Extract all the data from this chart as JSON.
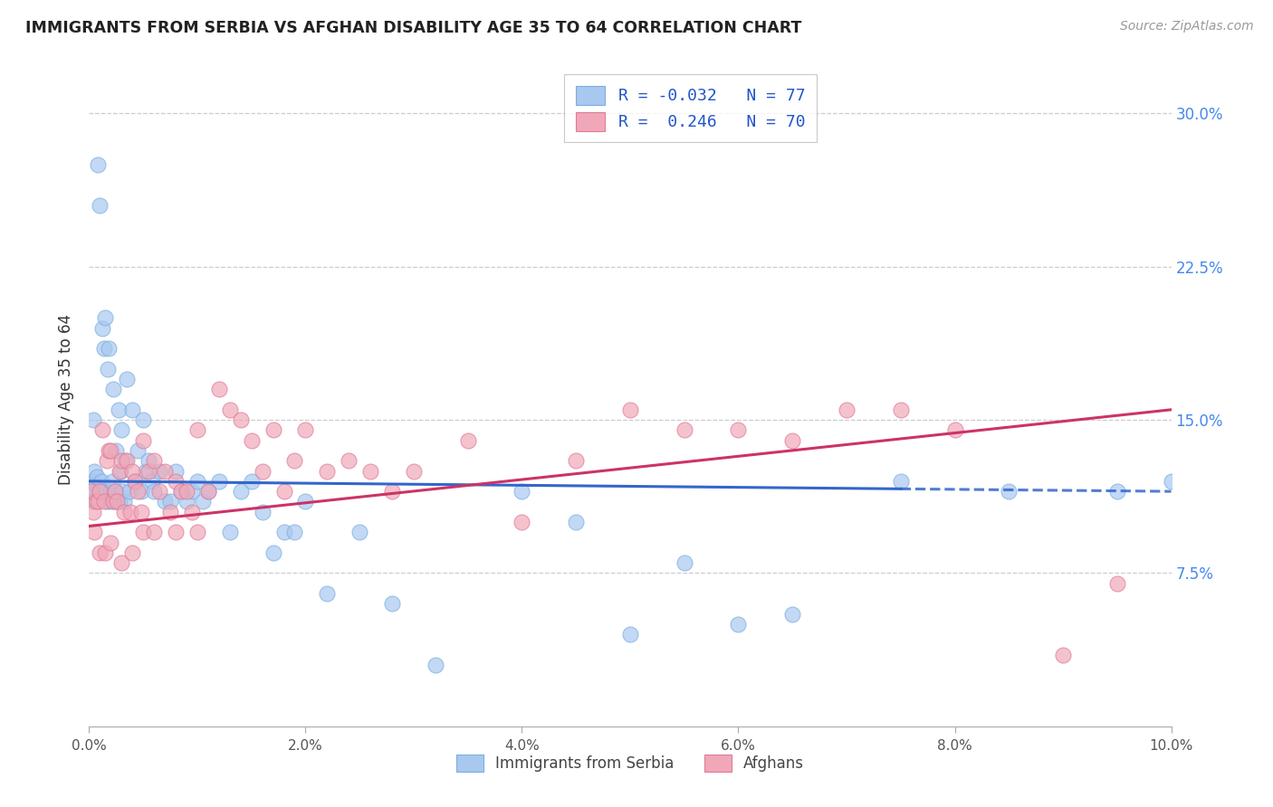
{
  "title": "IMMIGRANTS FROM SERBIA VS AFGHAN DISABILITY AGE 35 TO 64 CORRELATION CHART",
  "source": "Source: ZipAtlas.com",
  "ylabel": "Disability Age 35 to 64",
  "x_tick_labels": [
    "0.0%",
    "2.0%",
    "4.0%",
    "6.0%",
    "8.0%",
    "10.0%"
  ],
  "x_tick_values": [
    0.0,
    2.0,
    4.0,
    6.0,
    8.0,
    10.0
  ],
  "y_tick_labels": [
    "7.5%",
    "15.0%",
    "22.5%",
    "30.0%"
  ],
  "y_tick_values": [
    7.5,
    15.0,
    22.5,
    30.0
  ],
  "xlim": [
    0.0,
    10.0
  ],
  "ylim": [
    0.0,
    32.0
  ],
  "serbia_R": "-0.032",
  "serbia_N": "77",
  "afghan_R": "0.246",
  "afghan_N": "70",
  "serbia_color": "#a8c8f0",
  "afghan_color": "#f0a8b8",
  "serbia_line_color": "#3366cc",
  "afghan_line_color": "#cc3366",
  "legend_label_serbia": "Immigrants from Serbia",
  "legend_label_afghan": "Afghans",
  "serbia_trend_x0": 0.0,
  "serbia_trend_y0": 12.0,
  "serbia_trend_x1": 10.0,
  "serbia_trend_y1": 11.5,
  "serbia_solid_end_x": 7.5,
  "afghan_trend_x0": 0.0,
  "afghan_trend_y0": 9.8,
  "afghan_trend_x1": 10.0,
  "afghan_trend_y1": 15.5,
  "serbia_x": [
    0.02,
    0.03,
    0.04,
    0.05,
    0.06,
    0.07,
    0.08,
    0.09,
    0.1,
    0.11,
    0.12,
    0.13,
    0.14,
    0.15,
    0.16,
    0.17,
    0.18,
    0.19,
    0.2,
    0.21,
    0.22,
    0.23,
    0.24,
    0.25,
    0.26,
    0.27,
    0.28,
    0.29,
    0.3,
    0.31,
    0.32,
    0.33,
    0.35,
    0.37,
    0.4,
    0.42,
    0.45,
    0.48,
    0.5,
    0.52,
    0.55,
    0.58,
    0.6,
    0.65,
    0.7,
    0.75,
    0.8,
    0.85,
    0.9,
    0.95,
    1.0,
    1.05,
    1.1,
    1.2,
    1.3,
    1.4,
    1.5,
    1.6,
    1.7,
    1.8,
    1.9,
    2.0,
    2.2,
    2.5,
    2.8,
    3.2,
    4.0,
    4.5,
    5.0,
    5.5,
    6.0,
    6.5,
    7.5,
    8.5,
    9.5,
    10.0,
    0.04
  ],
  "serbia_y": [
    11.5,
    12.0,
    11.0,
    12.5,
    11.8,
    12.2,
    27.5,
    11.5,
    25.5,
    12.0,
    19.5,
    11.5,
    18.5,
    20.0,
    11.0,
    17.5,
    18.5,
    11.0,
    11.5,
    12.0,
    16.5,
    11.0,
    11.5,
    13.5,
    11.0,
    15.5,
    11.0,
    12.5,
    14.5,
    11.5,
    11.0,
    13.0,
    17.0,
    11.5,
    15.5,
    12.0,
    13.5,
    11.5,
    15.0,
    12.5,
    13.0,
    12.0,
    11.5,
    12.5,
    11.0,
    11.0,
    12.5,
    11.5,
    11.0,
    11.5,
    12.0,
    11.0,
    11.5,
    12.0,
    9.5,
    11.5,
    12.0,
    10.5,
    8.5,
    9.5,
    9.5,
    11.0,
    6.5,
    9.5,
    6.0,
    3.0,
    11.5,
    10.0,
    4.5,
    8.0,
    5.0,
    5.5,
    12.0,
    11.5,
    11.5,
    12.0,
    15.0
  ],
  "afghan_x": [
    0.02,
    0.04,
    0.06,
    0.08,
    0.1,
    0.12,
    0.14,
    0.16,
    0.18,
    0.2,
    0.22,
    0.24,
    0.26,
    0.28,
    0.3,
    0.32,
    0.35,
    0.38,
    0.4,
    0.42,
    0.45,
    0.48,
    0.5,
    0.55,
    0.6,
    0.65,
    0.7,
    0.75,
    0.8,
    0.85,
    0.9,
    0.95,
    1.0,
    1.1,
    1.2,
    1.3,
    1.4,
    1.5,
    1.6,
    1.7,
    1.8,
    1.9,
    2.0,
    2.2,
    2.4,
    2.6,
    2.8,
    3.0,
    3.5,
    4.0,
    4.5,
    5.0,
    5.5,
    6.0,
    6.5,
    7.0,
    7.5,
    8.0,
    9.0,
    9.5,
    0.05,
    0.1,
    0.15,
    0.2,
    0.3,
    0.4,
    0.5,
    0.6,
    0.8,
    1.0
  ],
  "afghan_y": [
    11.5,
    10.5,
    11.0,
    11.0,
    11.5,
    14.5,
    11.0,
    13.0,
    13.5,
    13.5,
    11.0,
    11.5,
    11.0,
    12.5,
    13.0,
    10.5,
    13.0,
    10.5,
    12.5,
    12.0,
    11.5,
    10.5,
    14.0,
    12.5,
    13.0,
    11.5,
    12.5,
    10.5,
    12.0,
    11.5,
    11.5,
    10.5,
    14.5,
    11.5,
    16.5,
    15.5,
    15.0,
    14.0,
    12.5,
    14.5,
    11.5,
    13.0,
    14.5,
    12.5,
    13.0,
    12.5,
    11.5,
    12.5,
    14.0,
    10.0,
    13.0,
    15.5,
    14.5,
    14.5,
    14.0,
    15.5,
    15.5,
    14.5,
    3.5,
    7.0,
    9.5,
    8.5,
    8.5,
    9.0,
    8.0,
    8.5,
    9.5,
    9.5,
    9.5,
    9.5
  ]
}
